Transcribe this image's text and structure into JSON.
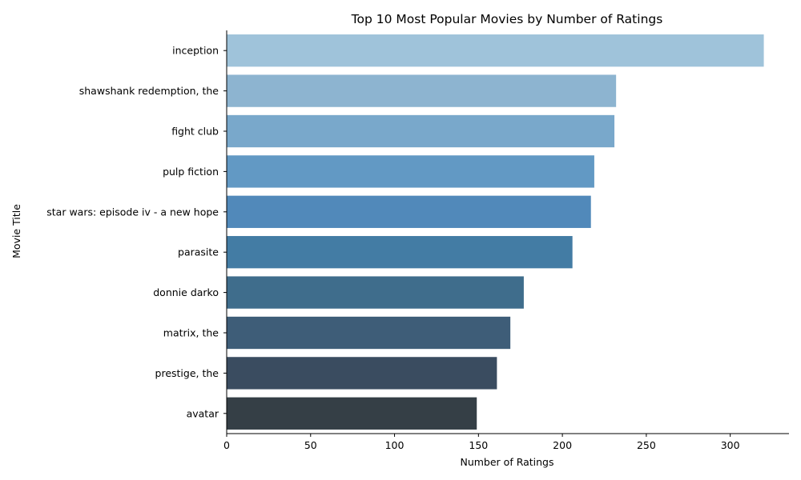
{
  "chart_data": {
    "type": "bar",
    "orientation": "horizontal",
    "title": "Top 10 Most Popular Movies by Number of Ratings",
    "xlabel": "Number of Ratings",
    "ylabel": "Movie Title",
    "categories": [
      "inception",
      "shawshank redemption, the",
      "fight club",
      "pulp fiction",
      "star wars: episode iv - a new hope",
      "parasite",
      "donnie darko",
      "matrix, the",
      "prestige, the",
      "avatar"
    ],
    "values": [
      320,
      232,
      231,
      219,
      217,
      206,
      177,
      169,
      161,
      149
    ],
    "colors": [
      "#9fc3da",
      "#8db4d0",
      "#79a8cb",
      "#6299c4",
      "#5189ba",
      "#437ca4",
      "#3f6d8c",
      "#3e5d78",
      "#3a4c60",
      "#353f46"
    ],
    "xlim": [
      0,
      335
    ],
    "xticks": [
      0,
      50,
      100,
      150,
      200,
      250,
      300
    ],
    "grid": false,
    "legend": "none"
  }
}
